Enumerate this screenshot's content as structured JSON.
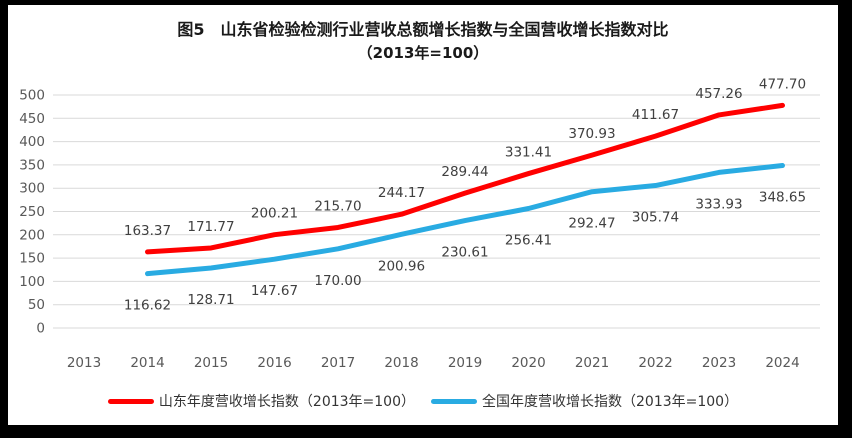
{
  "colors": {
    "frame": "#000000",
    "chart_background": "#FFFFFF",
    "gridline": "#D9D9D9",
    "tick_label": "#595959",
    "data_label": "#404040",
    "title": "#1A1A1A",
    "shandong_line": "#FF0000",
    "national_line": "#29ABE2"
  },
  "chart_data": {
    "type": "line",
    "title": "图5　山东省检验检测行业营收总额增长指数与全国营收增长指数对比",
    "subtitle": "（2013年=100）",
    "x_labels": [
      "2013",
      "2014",
      "2015",
      "2016",
      "2017",
      "2018",
      "2019",
      "2020",
      "2021",
      "2022",
      "2023",
      "2024"
    ],
    "ylim": [
      0,
      500
    ],
    "ytick_step": 50,
    "yticks": [
      0,
      50,
      100,
      150,
      200,
      250,
      300,
      350,
      400,
      450,
      500
    ],
    "grid": true,
    "legend_position": "bottom",
    "series": [
      {
        "id": "shandong",
        "name": "山东年度营收增长指数（2013年=100）",
        "color": "#FF0000",
        "label_side": "above",
        "values": [
          null,
          163.37,
          171.77,
          200.21,
          215.7,
          244.17,
          289.44,
          331.41,
          370.93,
          411.67,
          457.26,
          477.7
        ]
      },
      {
        "id": "national",
        "name": "全国年度营收增长指数（2013年=100）",
        "color": "#29ABE2",
        "label_side": "below",
        "values": [
          null,
          116.62,
          128.71,
          147.67,
          170.0,
          200.96,
          230.61,
          256.41,
          292.47,
          305.74,
          333.93,
          348.65
        ]
      }
    ]
  }
}
